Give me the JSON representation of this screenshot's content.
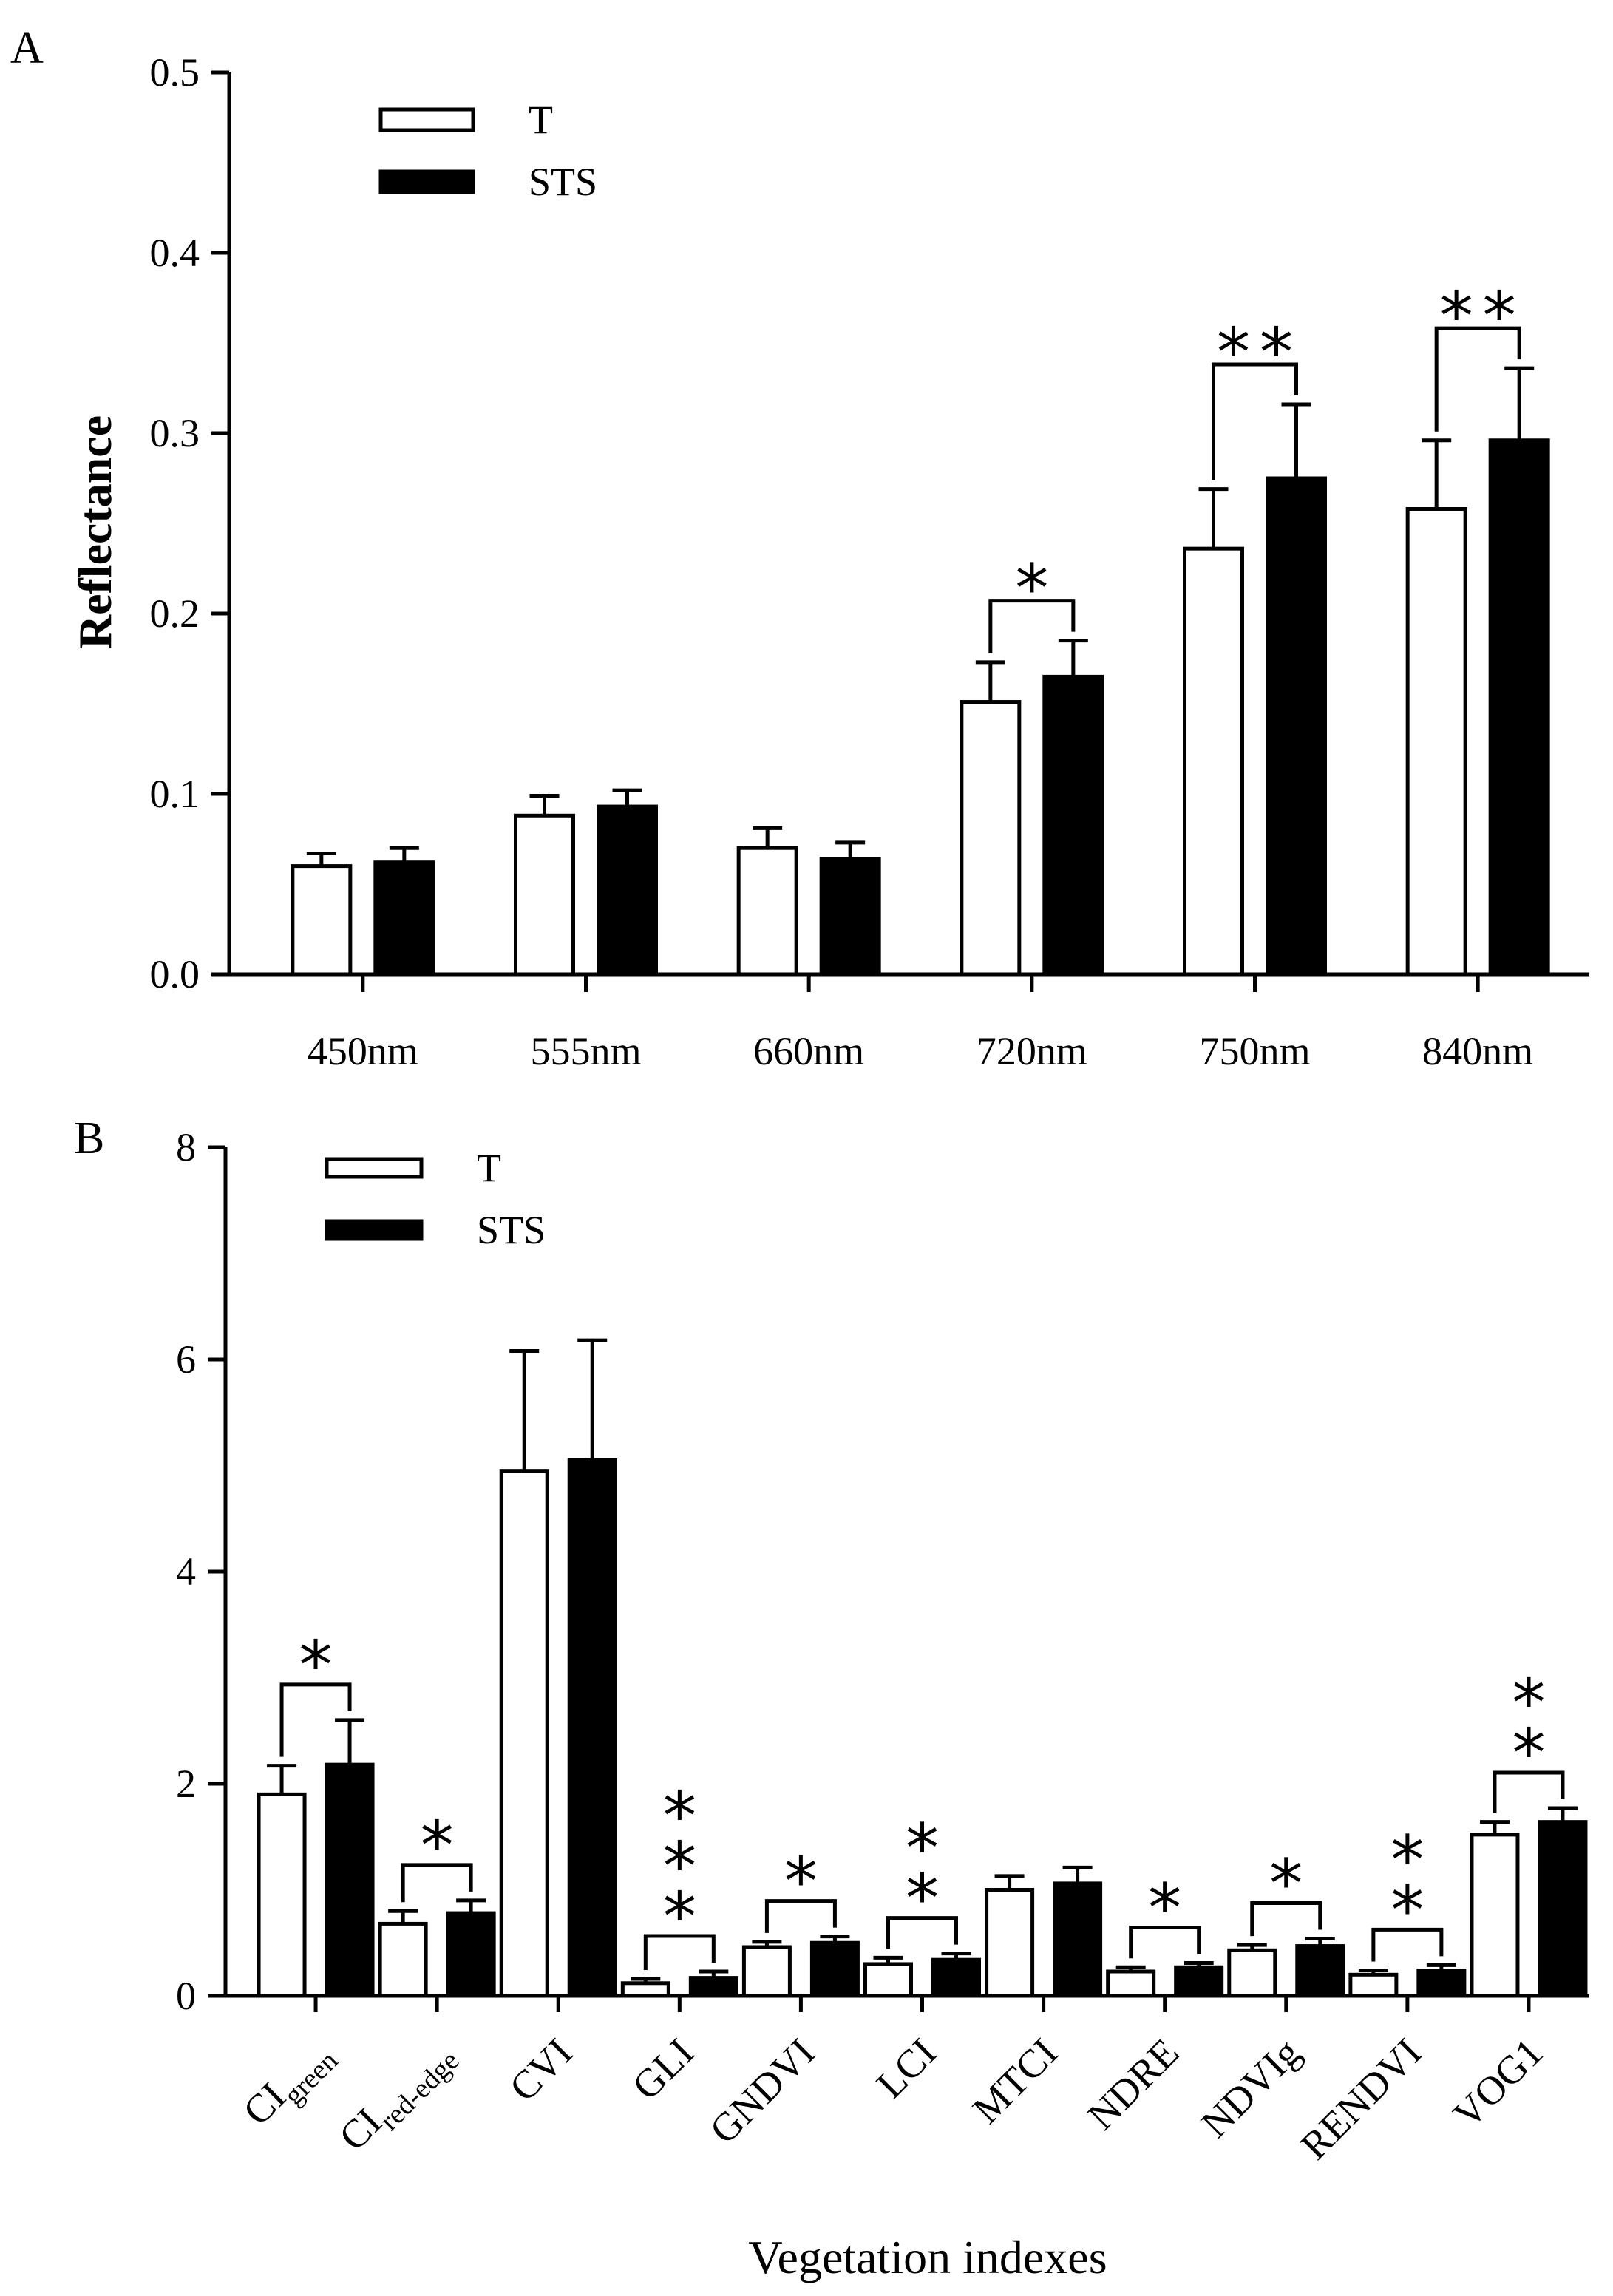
{
  "chart_data": [
    {
      "panel": "A",
      "type": "bar",
      "title": "",
      "xlabel": "",
      "ylabel": "Reflectance",
      "ylim": [
        0,
        0.5
      ],
      "yticks": [
        0.0,
        0.1,
        0.2,
        0.3,
        0.4,
        0.5
      ],
      "ytick_labels": [
        "0.0",
        "0.1",
        "0.2",
        "0.3",
        "0.4",
        "0.5"
      ],
      "grid": false,
      "legend_position": "top-left",
      "categories": [
        "450nm",
        "555nm",
        "660nm",
        "720nm",
        "750nm",
        "840nm"
      ],
      "series": [
        {
          "name": "T",
          "fill": "#ffffff",
          "values": [
            0.06,
            0.088,
            0.07,
            0.151,
            0.236,
            0.258
          ],
          "errors": [
            0.007,
            0.011,
            0.011,
            0.022,
            0.033,
            0.038
          ]
        },
        {
          "name": "STS",
          "fill": "#000000",
          "values": [
            0.062,
            0.093,
            0.064,
            0.165,
            0.275,
            0.296
          ],
          "errors": [
            0.008,
            0.009,
            0.009,
            0.02,
            0.041,
            0.04
          ]
        }
      ],
      "significance": [
        {
          "category": "720nm",
          "stars": [
            "*"
          ]
        },
        {
          "category": "750nm",
          "stars": [
            "**"
          ]
        },
        {
          "category": "840nm",
          "stars": [
            "**"
          ]
        }
      ]
    },
    {
      "panel": "B",
      "type": "bar",
      "title": "",
      "xlabel": "Vegetation indexes",
      "ylabel": "",
      "ylim": [
        0,
        8
      ],
      "yticks": [
        0,
        2,
        4,
        6,
        8
      ],
      "ytick_labels": [
        "0",
        "2",
        "4",
        "6",
        "8"
      ],
      "grid": false,
      "legend_position": "top-left",
      "categories": [
        {
          "main": "CI",
          "sub": "green"
        },
        {
          "main": "CI",
          "sub": "red-edge"
        },
        {
          "main": "CVI",
          "sub": ""
        },
        {
          "main": "GLI",
          "sub": ""
        },
        {
          "main": "GNDVI",
          "sub": ""
        },
        {
          "main": "LCI",
          "sub": ""
        },
        {
          "main": "MTCI",
          "sub": ""
        },
        {
          "main": "NDRE",
          "sub": ""
        },
        {
          "main": "NDVIg",
          "sub": ""
        },
        {
          "main": "RENDVI",
          "sub": ""
        },
        {
          "main": "VOG1",
          "sub": ""
        }
      ],
      "series": [
        {
          "name": "T",
          "fill": "#ffffff",
          "values": [
            1.9,
            0.68,
            4.95,
            0.12,
            0.46,
            0.3,
            1.0,
            0.23,
            0.43,
            0.2,
            1.52
          ],
          "errors": [
            0.27,
            0.12,
            1.13,
            0.04,
            0.05,
            0.06,
            0.13,
            0.04,
            0.05,
            0.04,
            0.12
          ]
        },
        {
          "name": "STS",
          "fill": "#000000",
          "values": [
            2.18,
            0.78,
            5.05,
            0.17,
            0.5,
            0.34,
            1.06,
            0.27,
            0.47,
            0.24,
            1.64
          ],
          "errors": [
            0.42,
            0.12,
            1.13,
            0.06,
            0.06,
            0.06,
            0.15,
            0.04,
            0.07,
            0.05,
            0.13
          ]
        }
      ],
      "significance": [
        {
          "category": "CI_green",
          "stars": [
            "*"
          ]
        },
        {
          "category": "CI_red-edge",
          "stars": [
            "*"
          ]
        },
        {
          "category": "GLI",
          "stars": [
            "*",
            "*",
            "*"
          ]
        },
        {
          "category": "GNDVI",
          "stars": [
            "*"
          ]
        },
        {
          "category": "LCI",
          "stars": [
            "*",
            "*"
          ]
        },
        {
          "category": "NDRE",
          "stars": [
            "*"
          ]
        },
        {
          "category": "NDVIg",
          "stars": [
            "*"
          ]
        },
        {
          "category": "RENDVI",
          "stars": [
            "*",
            "*"
          ]
        },
        {
          "category": "VOG1",
          "stars": [
            "*",
            "*"
          ]
        }
      ]
    }
  ]
}
